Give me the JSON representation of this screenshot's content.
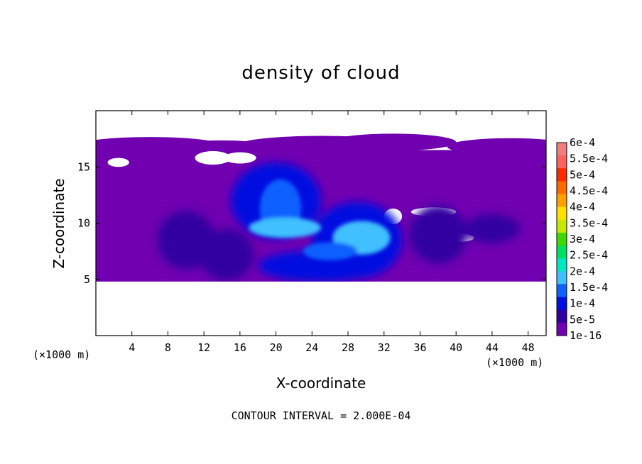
{
  "chart_data": {
    "type": "heatmap",
    "title": "density of cloud",
    "xlabel": "X-coordinate",
    "ylabel": "Z-coordinate",
    "x_unit": "(×1000 m)",
    "y_unit": "(×1000 m)",
    "xlim": [
      0,
      50
    ],
    "ylim": [
      0,
      20
    ],
    "x_ticks": [
      4,
      8,
      12,
      16,
      20,
      24,
      28,
      32,
      36,
      40,
      44,
      48
    ],
    "y_ticks": [
      5,
      10,
      15
    ],
    "footer": "CONTOUR INTERVAL = 2.000E-04",
    "colorbar": {
      "labels": [
        "6e-4",
        "5.5e-4",
        "5e-4",
        "4.5e-4",
        "4e-4",
        "3.5e-4",
        "3e-4",
        "2.5e-4",
        "2e-4",
        "1.5e-4",
        "1e-4",
        "5e-5",
        "1e-16"
      ],
      "colors": [
        "#f08080",
        "#ff6060",
        "#ff2a00",
        "#ff6a00",
        "#ffa000",
        "#ffe000",
        "#c8e800",
        "#40d800",
        "#00e060",
        "#00e8c0",
        "#40c0ff",
        "#1060ff",
        "#0010e0",
        "#3000a0",
        "#7000b0"
      ]
    },
    "cloud_layer": {
      "z_bottom": 4.8,
      "z_top": 16.5
    },
    "features": [
      {
        "x": 10,
        "z": 8.5,
        "level": "5e-5"
      },
      {
        "x": 20,
        "z": 12,
        "level": "1.5e-4"
      },
      {
        "x": 29,
        "z": 8.5,
        "level": "1.5e-4"
      },
      {
        "x": 38,
        "z": 9,
        "level": "5e-5"
      }
    ]
  }
}
